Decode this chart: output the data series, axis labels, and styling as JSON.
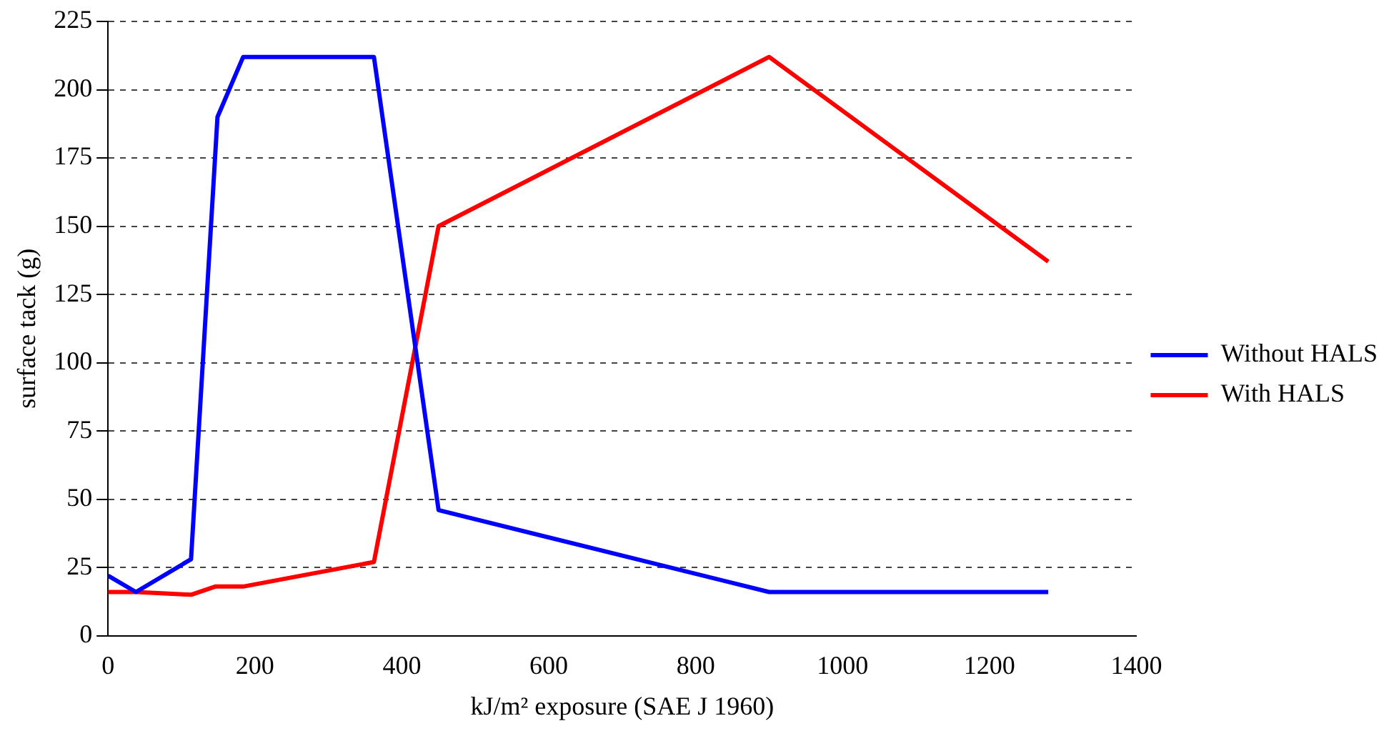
{
  "chart_data": {
    "type": "line",
    "xlabel": "kJ/m² exposure (SAE J 1960)",
    "ylabel": "surface tack (g)",
    "xlim": [
      0,
      1400
    ],
    "xticks": [
      0,
      200,
      400,
      600,
      800,
      1000,
      1200,
      1400
    ],
    "ylim": [
      0,
      225
    ],
    "yticks": [
      0,
      25,
      50,
      75,
      100,
      125,
      150,
      175,
      200,
      225
    ],
    "grid": "y",
    "legend": "right",
    "marker": "none",
    "line_style": "solid",
    "series": [
      {
        "name": "Without HALS",
        "color": "#0000ff",
        "x": [
          0,
          38,
          113,
          149,
          184,
          362,
          450,
          900,
          1280
        ],
        "values": [
          22,
          16,
          28,
          190,
          212,
          212,
          46,
          16,
          16
        ]
      },
      {
        "name": "With HALS",
        "color": "#ff0000",
        "x": [
          0,
          38,
          113,
          146,
          184,
          362,
          450,
          900,
          1280
        ],
        "values": [
          16,
          16,
          15,
          18,
          18,
          27,
          150,
          212,
          137
        ]
      }
    ]
  }
}
